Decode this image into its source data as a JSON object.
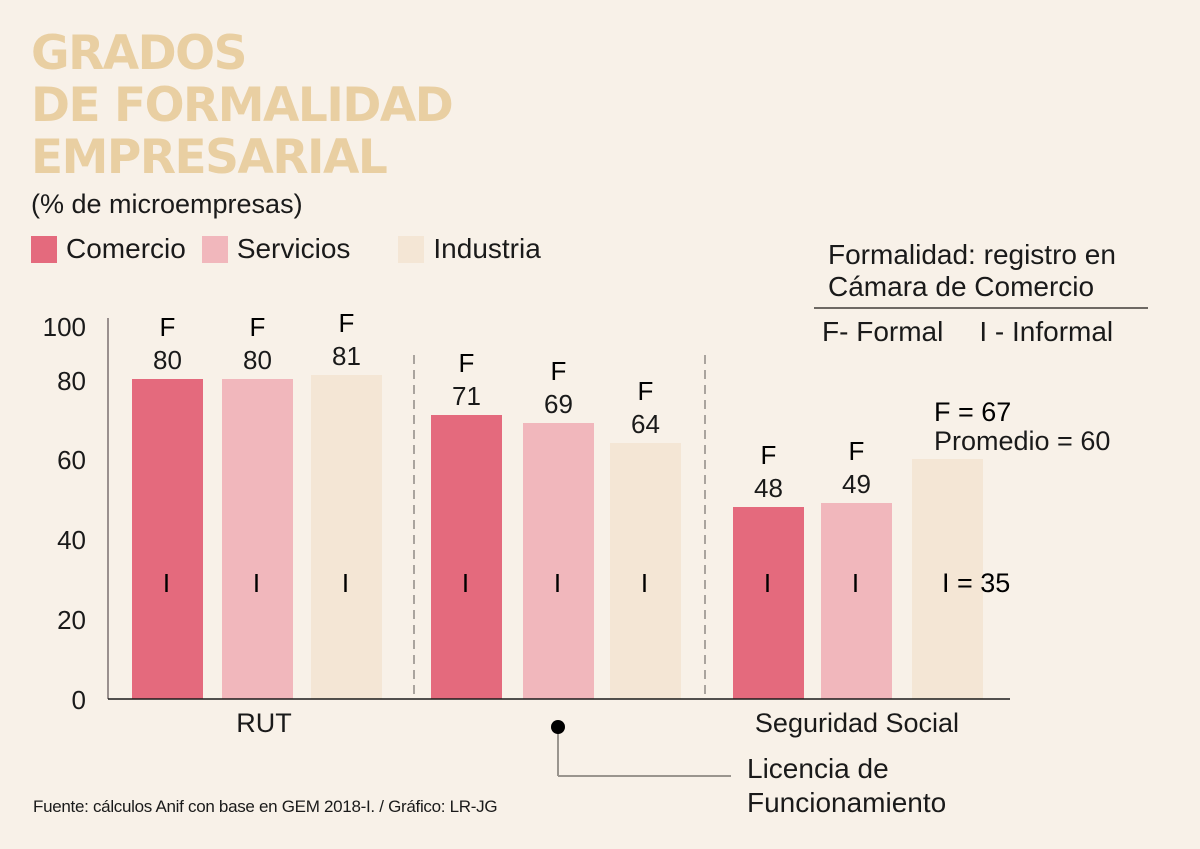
{
  "header": {
    "title_lines": [
      "GRADOS",
      "DE FORMALIDAD",
      "EMPRESARIAL"
    ],
    "subtitle": "(% de microempresas)"
  },
  "legend": [
    {
      "label": "Comercio",
      "color": "#E46A7D"
    },
    {
      "label": "Servicios",
      "color": "#F1B7BC"
    },
    {
      "label": "Industria",
      "color": "#F4E6D5"
    }
  ],
  "note": {
    "line1": "Formalidad: registro en",
    "line2": "Cámara de Comercio",
    "formal_key": "F",
    "formal_text": "- Formal",
    "informal_key": "I",
    "informal_text": "- Informal"
  },
  "callout": {
    "line1": "Licencia de",
    "line2": "Funcionamiento"
  },
  "source": "Fuente: cálculos Anif con base en GEM 2018-I.  / Gráfico: LR-JG",
  "chart_data": {
    "type": "bar",
    "title": "GRADOS DE FORMALIDAD EMPRESARIAL",
    "subtitle": "(% de microempresas)",
    "xlabel": "",
    "ylabel": "",
    "ylim": [
      0,
      100
    ],
    "yticks": [
      0,
      20,
      40,
      60,
      80,
      100
    ],
    "grid": false,
    "legend_position": "top-left",
    "categories": [
      "RUT",
      "Licencia de Funcionamiento",
      "Seguridad Social"
    ],
    "category_labels_shown": [
      "RUT",
      "",
      "Seguridad Social"
    ],
    "series": [
      {
        "name": "Comercio",
        "color": "#E46A7D",
        "values": [
          80,
          71,
          48
        ],
        "value_labels": [
          "80",
          "71",
          "48"
        ]
      },
      {
        "name": "Servicios",
        "color": "#F1B7BC",
        "values": [
          80,
          69,
          49
        ],
        "value_labels": [
          "80",
          "69",
          "49"
        ]
      },
      {
        "name": "Industria",
        "color": "#F4E6D5",
        "values": [
          81,
          64,
          60
        ],
        "value_labels": [
          "81",
          "64",
          ""
        ]
      }
    ],
    "bar_top_marker": "F",
    "bar_inner_marker": "I",
    "annotations": [
      {
        "text": "F = 67",
        "target": "Seguridad Social / Industria"
      },
      {
        "text": "Promedio = 60",
        "target": "Seguridad Social / Industria"
      },
      {
        "text": "I = 35",
        "target": "Seguridad Social / Industria"
      }
    ]
  }
}
